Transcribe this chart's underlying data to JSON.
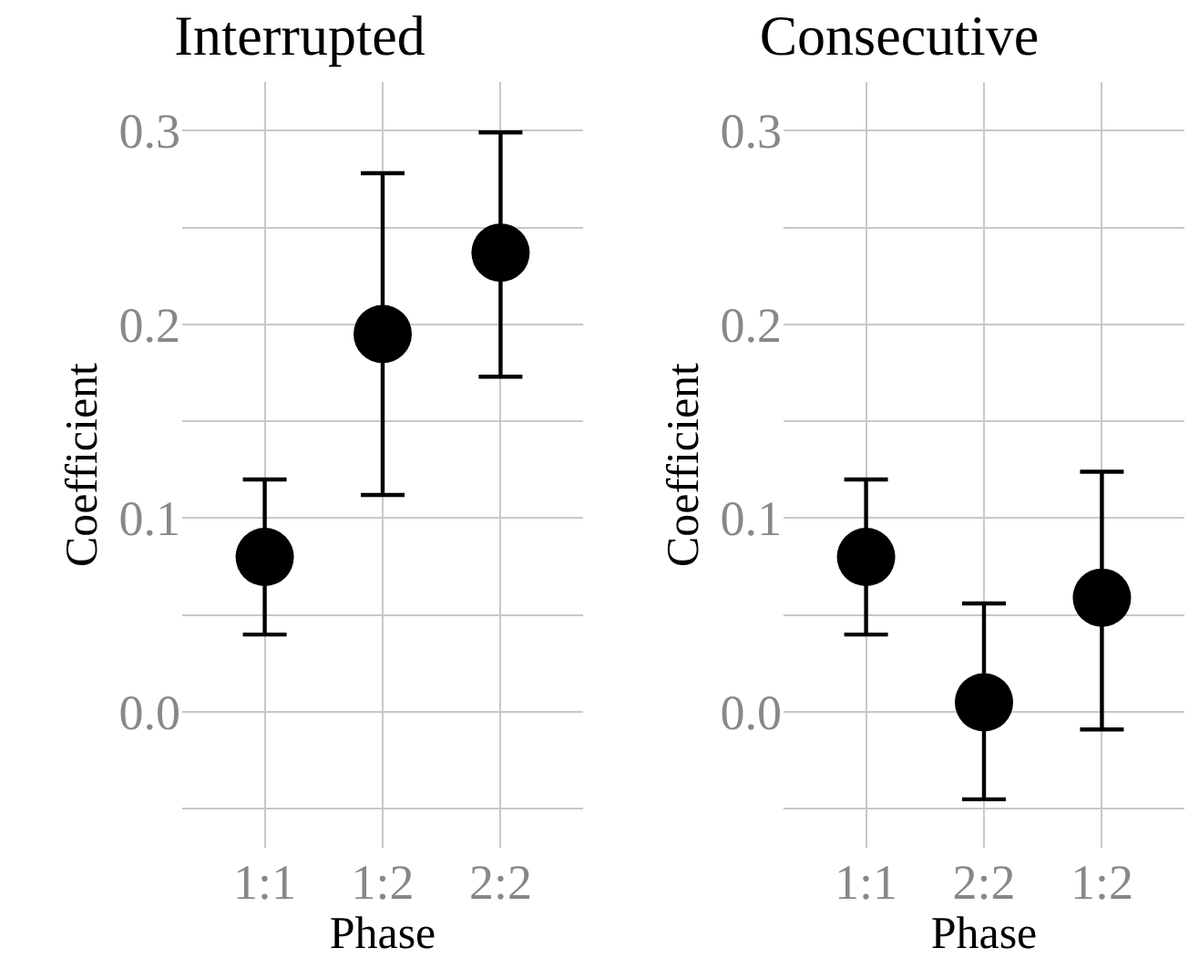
{
  "chart_data": [
    {
      "type": "scatter",
      "title": "Interrupted",
      "xlabel": "Phase",
      "ylabel": "Coefficient",
      "categories": [
        "1:1",
        "1:2",
        "2:2"
      ],
      "marker": "circle",
      "grid": true,
      "series": [
        {
          "color": "#000000",
          "values": [
            0.08,
            0.195,
            0.237
          ],
          "errors": [
            [
              0.04,
              0.12
            ],
            [
              0.112,
              0.278
            ],
            [
              0.173,
              0.299
            ]
          ]
        }
      ],
      "ylim": [
        -0.07,
        0.325
      ],
      "yticks": [
        {
          "value": -0.05,
          "label": null
        },
        {
          "value": 0,
          "label": "0.0"
        },
        {
          "value": 0.05,
          "label": null
        },
        0.1,
        {
          "value": 0.15,
          "label": null
        },
        0.2,
        {
          "value": 0.25,
          "label": null
        },
        0.3
      ]
    },
    {
      "type": "scatter",
      "title": "Consecutive",
      "xlabel": "Phase",
      "ylabel": "Coefficient",
      "categories": [
        "1:1",
        "2:2",
        "1:2"
      ],
      "marker": "circle",
      "grid": true,
      "series": [
        {
          "color": "#000000",
          "values": [
            0.08,
            0.005,
            0.059
          ],
          "errors": [
            [
              0.04,
              0.12
            ],
            [
              -0.045,
              0.056
            ],
            [
              -0.009,
              0.124
            ]
          ]
        }
      ],
      "ylim": [
        -0.07,
        0.325
      ],
      "yticks": [
        {
          "value": -0.05,
          "label": null
        },
        {
          "value": 0,
          "label": "0.0"
        },
        {
          "value": 0.05,
          "label": null
        },
        0.1,
        {
          "value": 0.15,
          "label": null
        },
        0.2,
        {
          "value": 0.25,
          "label": null
        },
        0.3
      ]
    }
  ]
}
